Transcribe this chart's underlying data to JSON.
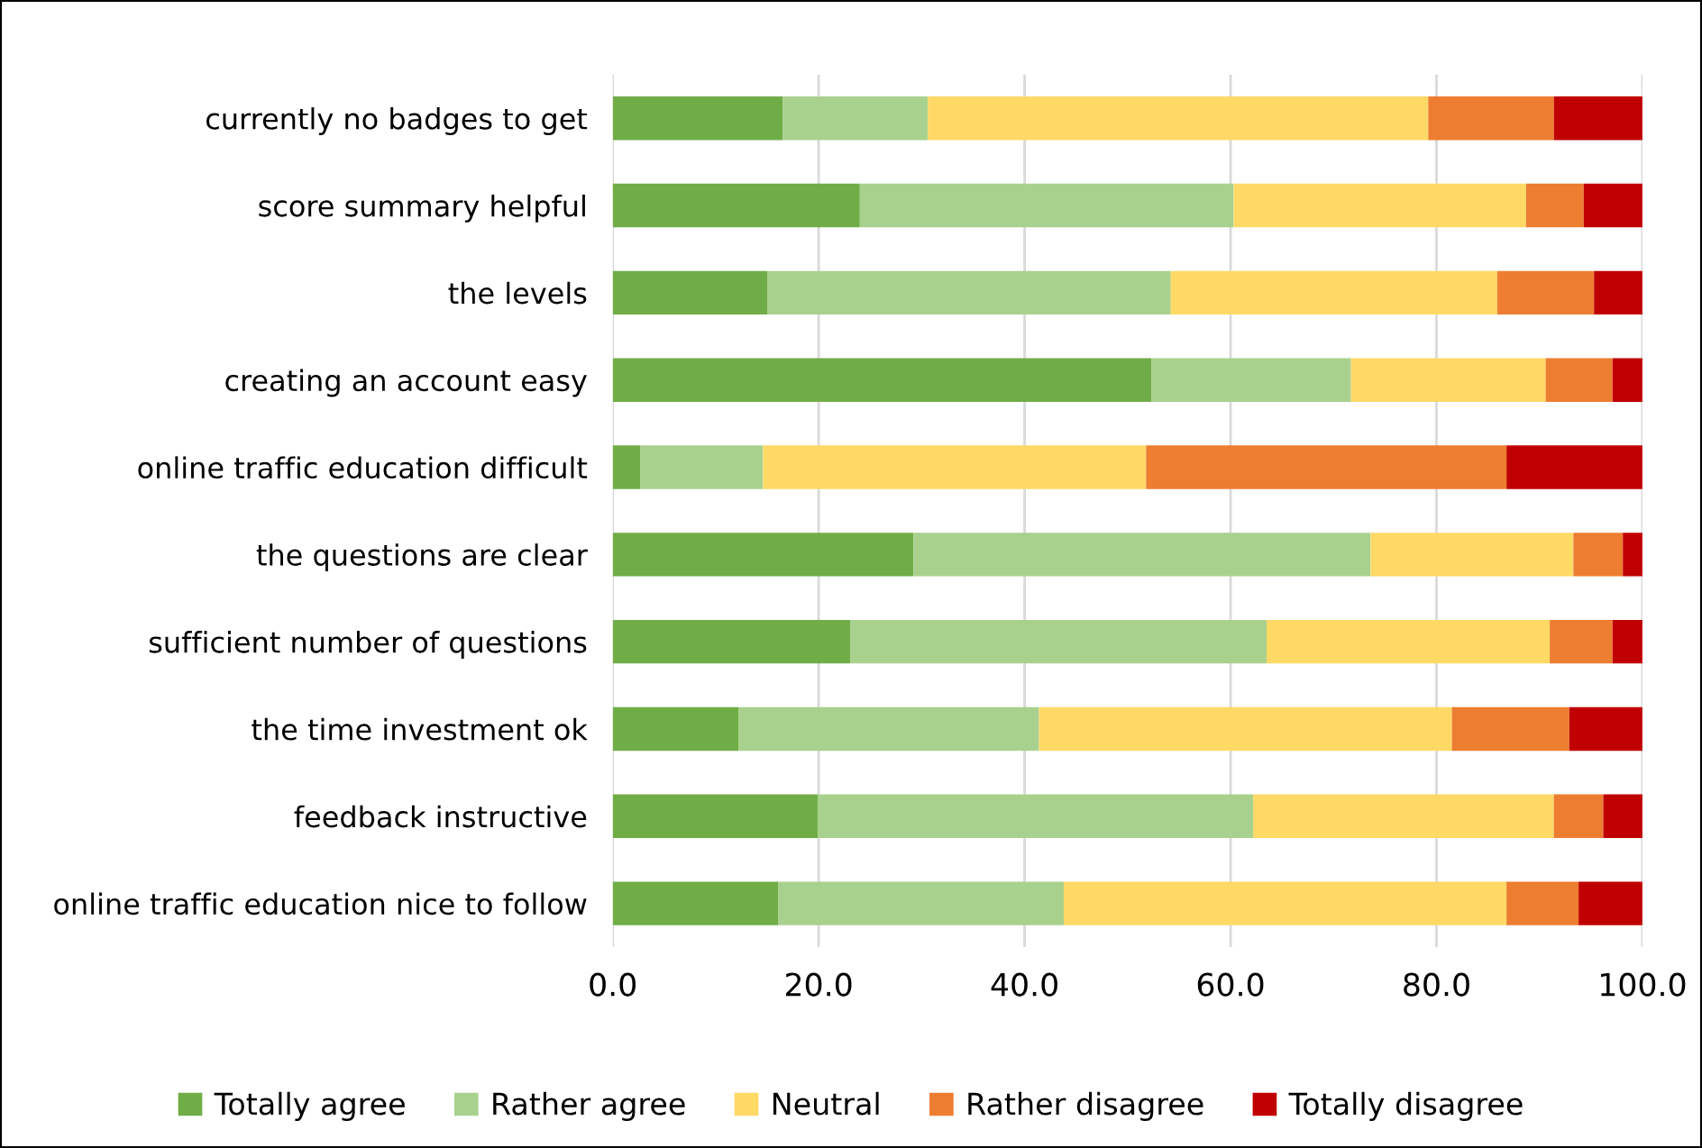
{
  "chart_data": {
    "type": "bar",
    "orientation": "horizontal",
    "stacked": true,
    "categories": [
      "currently no badges to get",
      "score summary helpful",
      "the levels",
      "creating an account easy",
      "online traffic education difficult",
      "the questions are clear",
      "sufficient number of questions",
      "the time investment ok",
      "feedback instructive",
      "online traffic education nice to follow"
    ],
    "series": [
      {
        "name": "Totally agree",
        "color": "#70ad47",
        "values": [
          16.5,
          24.0,
          15.0,
          52.3,
          2.7,
          29.2,
          23.1,
          12.2,
          19.9,
          16.1
        ]
      },
      {
        "name": "Rather agree",
        "color": "#a9d18e",
        "values": [
          14.1,
          36.3,
          39.2,
          19.4,
          11.9,
          44.4,
          40.4,
          29.2,
          42.3,
          27.7
        ]
      },
      {
        "name": "Neutral",
        "color": "#ffd966",
        "values": [
          48.6,
          28.4,
          31.7,
          18.9,
          37.2,
          19.7,
          27.5,
          40.1,
          29.2,
          43.0
        ]
      },
      {
        "name": "Rather disagree",
        "color": "#ed7d31",
        "values": [
          12.2,
          5.6,
          9.4,
          6.5,
          35.0,
          4.8,
          6.1,
          11.4,
          4.8,
          7.0
        ]
      },
      {
        "name": "Totally disagree",
        "color": "#c00000",
        "values": [
          8.6,
          5.7,
          4.7,
          2.9,
          13.2,
          1.9,
          2.9,
          7.1,
          3.8,
          6.2
        ]
      }
    ],
    "xlim": [
      0,
      100
    ],
    "xticks": [
      {
        "value": 0,
        "label": "0.0"
      },
      {
        "value": 20,
        "label": "20.0"
      },
      {
        "value": 40,
        "label": "40.0"
      },
      {
        "value": 60,
        "label": "60.0"
      },
      {
        "value": 80,
        "label": "80.0"
      },
      {
        "value": 100,
        "label": "100.0"
      }
    ],
    "grid": "x",
    "legend": "bottom"
  }
}
